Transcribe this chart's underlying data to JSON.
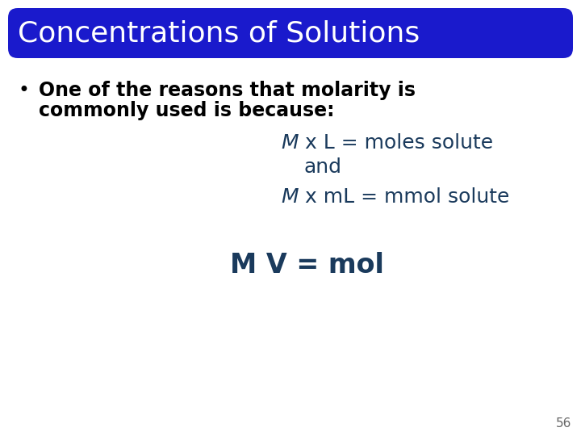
{
  "title": "Concentrations of Solutions",
  "title_color": "#ffffff",
  "title_bg_color": "#1a1acc",
  "background_color": "#ffffff",
  "bullet_text_line1": "One of the reasons that molarity is",
  "bullet_text_line2": "commonly used is because:",
  "line3_italic": "M",
  "line3_rest": " x L = moles solute",
  "line4": "and",
  "line5_italic": "M",
  "line5_rest": " x mL = mmol solute",
  "line6": "M V = mol",
  "body_color": "#1a3a5c",
  "bullet_color": "#000000",
  "page_number": "56",
  "page_number_color": "#666666",
  "title_fontsize": 26,
  "bullet_fontsize": 17,
  "formula_fontsize": 18,
  "mv_fontsize": 24
}
